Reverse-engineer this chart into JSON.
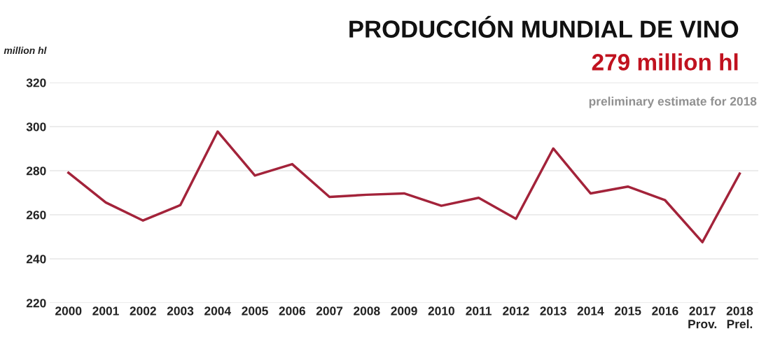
{
  "chart_data": {
    "type": "line",
    "title": "PRODUCCIÓN MUNDIAL DE VINO",
    "subtitle": "279 million hl",
    "annotations": [
      "preliminary estimate for 2018"
    ],
    "ylabel": "million hl",
    "categories": [
      "2000",
      "2001",
      "2002",
      "2003",
      "2004",
      "2005",
      "2006",
      "2007",
      "2008",
      "2009",
      "2010",
      "2011",
      "2012",
      "2013",
      "2014",
      "2015",
      "2016",
      "2017\nProv.",
      "2018\nPrel."
    ],
    "series": [
      {
        "color": "#a3233a",
        "values": [
          279.1,
          265.6,
          257.4,
          264.4,
          297.8,
          277.8,
          283,
          268.1,
          269.1,
          269.7,
          264.1,
          267.7,
          258.2,
          290.1,
          269.7,
          272.8,
          266.6,
          247.6,
          278.7
        ]
      }
    ],
    "ylim": [
      220,
      320
    ],
    "yticks": [
      220,
      240,
      260,
      280,
      300,
      320
    ],
    "grid": "y",
    "legend": false,
    "marker": "none",
    "line_style": "solid"
  }
}
